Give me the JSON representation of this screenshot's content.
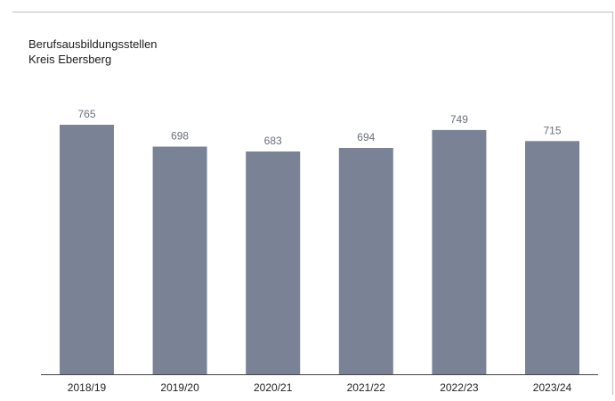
{
  "chart_data": {
    "type": "bar",
    "title": "Berufsausbildungsstellen",
    "subtitle": "Kreis Ebersberg",
    "categories": [
      "2018/19",
      "2019/20",
      "2020/21",
      "2021/22",
      "2022/23",
      "2023/24"
    ],
    "values": [
      765,
      698,
      683,
      694,
      749,
      715
    ],
    "ylim": [
      0,
      765
    ],
    "grid": false,
    "legend": "none",
    "bar_color": "#7a8396"
  }
}
